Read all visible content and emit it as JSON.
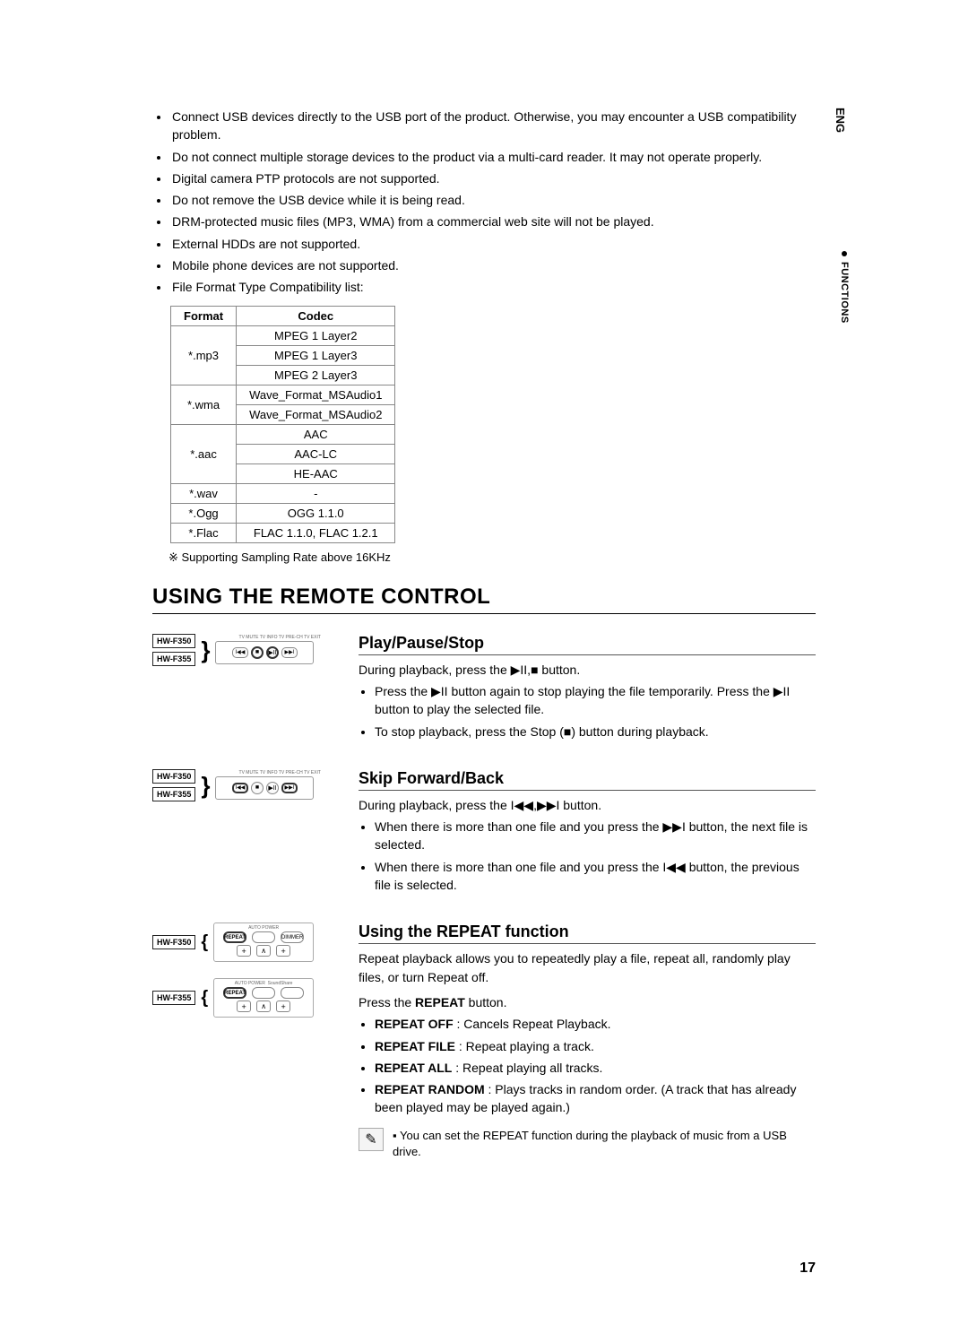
{
  "side": {
    "eng": "ENG",
    "functions": "FUNCTIONS"
  },
  "notes": [
    "Connect USB devices directly to the USB port of the product. Otherwise, you may encounter a USB compatibility problem.",
    "Do not connect multiple storage devices to the product via a multi-card reader. It may not operate properly.",
    "Digital camera PTP protocols are not supported.",
    "Do not remove the USB device while it is being read.",
    "DRM-protected music files (MP3, WMA) from a commercial web site will not be played.",
    "External HDDs are not supported.",
    "Mobile phone devices are not supported.",
    "File Format Type Compatibility list:"
  ],
  "format_table": {
    "headers": [
      "Format",
      "Codec"
    ],
    "rows": [
      {
        "format": "*.mp3",
        "codecs": [
          "MPEG 1 Layer2",
          "MPEG 1 Layer3",
          "MPEG 2 Layer3"
        ]
      },
      {
        "format": "*.wma",
        "codecs": [
          "Wave_Format_MSAudio1",
          "Wave_Format_MSAudio2"
        ]
      },
      {
        "format": "*.aac",
        "codecs": [
          "AAC",
          "AAC-LC",
          "HE-AAC"
        ]
      },
      {
        "format": "*.wav",
        "codecs": [
          "-"
        ]
      },
      {
        "format": "*.Ogg",
        "codecs": [
          "OGG 1.1.0"
        ]
      },
      {
        "format": "*.Flac",
        "codecs": [
          "FLAC 1.1.0, FLAC 1.2.1"
        ]
      }
    ],
    "note": "※ Supporting Sampling Rate above 16KHz"
  },
  "main_heading": "USING THE REMOTE CONTROL",
  "models": {
    "a": "HW-F350",
    "b": "HW-F355"
  },
  "play_pause": {
    "heading": "Play/Pause/Stop",
    "intro": "During playback, press the ▶II,■ button.",
    "bullets": [
      "Press the ▶II button again to stop playing the file temporarily. Press the ▶II button to play the selected file.",
      "To stop playback, press the Stop (■) button during playback."
    ]
  },
  "skip": {
    "heading": "Skip Forward/Back",
    "intro": "During playback, press the I◀◀,▶▶I button.",
    "bullets": [
      "When there is more than one file and you press the ▶▶I button, the next file is selected.",
      "When there is more than one file and you press the I◀◀ button, the previous file is selected."
    ]
  },
  "repeat": {
    "heading": "Using the REPEAT function",
    "intro": "Repeat playback allows you to repeatedly play a file, repeat all, randomly play files, or turn Repeat off.",
    "press_line_pre": "Press the ",
    "press_bold": "REPEAT",
    "press_line_post": " button.",
    "items": [
      {
        "label": "REPEAT OFF",
        "desc": " : Cancels Repeat Playback."
      },
      {
        "label": "REPEAT FILE",
        "desc": " : Repeat playing a track."
      },
      {
        "label": "REPEAT ALL",
        "desc": " : Repeat playing all tracks."
      },
      {
        "label": "REPEAT RANDOM",
        "desc": " : Plays tracks in random order. (A track that has already been played may be played again.)"
      }
    ],
    "remote_labels": {
      "auto_power": "AUTO POWER",
      "soundshare": "SoundShare",
      "repeat_btn": "REPEAT",
      "dimmer": "DIMMER"
    }
  },
  "note_callout": {
    "icon": "✎",
    "text": "You can set the REPEAT function during the playback of music from a USB drive."
  },
  "page_number": "17",
  "colors": {
    "text": "#000000",
    "border": "#888888",
    "bg": "#ffffff"
  }
}
